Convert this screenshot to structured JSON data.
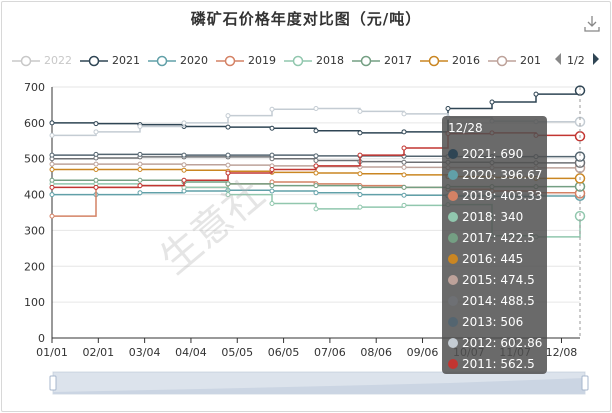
{
  "title": "磷矿石价格年度对比图（元/吨）",
  "legend": {
    "items": [
      {
        "name": "2022",
        "color": "#c8c8c8",
        "active": false
      },
      {
        "name": "2021",
        "color": "#2f4554",
        "active": true
      },
      {
        "name": "2020",
        "color": "#61a0a8",
        "active": true
      },
      {
        "name": "2019",
        "color": "#d48265",
        "active": true
      },
      {
        "name": "2018",
        "color": "#91c7ae",
        "active": true
      },
      {
        "name": "2017",
        "color": "#749f83",
        "active": true
      },
      {
        "name": "2016",
        "color": "#ca8622",
        "active": true
      },
      {
        "name": "201",
        "color": "#bda29a",
        "active": true
      }
    ],
    "page": "1/2"
  },
  "tooltip": {
    "title": "12/28",
    "rows": [
      {
        "label": "2021: 690",
        "color": "#2f4554"
      },
      {
        "label": "2020: 396.67",
        "color": "#61a0a8"
      },
      {
        "label": "2019: 403.33",
        "color": "#d48265"
      },
      {
        "label": "2018: 340",
        "color": "#91c7ae"
      },
      {
        "label": "2017: 422.5",
        "color": "#749f83"
      },
      {
        "label": "2016: 445",
        "color": "#ca8622"
      },
      {
        "label": "2015: 474.5",
        "color": "#bda29a"
      },
      {
        "label": "2014: 488.5",
        "color": "#6e7074"
      },
      {
        "label": "2013: 506",
        "color": "#546570"
      },
      {
        "label": "2012: 602.86",
        "color": "#c4ccd3"
      },
      {
        "label": "2011: 562.5",
        "color": "#c23531"
      }
    ]
  },
  "watermark": "生意社",
  "chart_data": {
    "type": "line",
    "title": "磷矿石价格年度对比图（元/吨）",
    "xlabel": "",
    "ylabel": "",
    "ylim": [
      0,
      700
    ],
    "yticks": [
      0,
      100,
      200,
      300,
      400,
      500,
      600,
      700
    ],
    "xticks": [
      "01/01",
      "02/01",
      "03/04",
      "04/04",
      "05/05",
      "06/05",
      "07/06",
      "08/06",
      "09/06",
      "10/07",
      "11/07",
      "12/08"
    ],
    "grid": "horizontal",
    "legend_position": "top",
    "x": [
      "01/01",
      "02/01",
      "03/04",
      "04/04",
      "05/05",
      "06/05",
      "07/06",
      "08/06",
      "09/06",
      "10/07",
      "11/07",
      "12/08",
      "12/28"
    ],
    "series": [
      {
        "name": "2021",
        "color": "#2f4554",
        "values": [
          600,
          598,
          595,
          590,
          588,
          585,
          578,
          572,
          575,
          640,
          658,
          680,
          690
        ]
      },
      {
        "name": "2020",
        "color": "#61a0a8",
        "values": [
          400,
          400,
          405,
          410,
          412,
          410,
          405,
          400,
          398,
          396,
          395,
          396,
          396.67
        ]
      },
      {
        "name": "2019",
        "color": "#d48265",
        "values": [
          340,
          420,
          425,
          420,
          430,
          435,
          430,
          425,
          420,
          415,
          410,
          405,
          403.33
        ]
      },
      {
        "name": "2018",
        "color": "#91c7ae",
        "values": [
          430,
          430,
          425,
          420,
          400,
          375,
          360,
          365,
          370,
          372,
          285,
          282,
          340
        ]
      },
      {
        "name": "2017",
        "color": "#749f83",
        "values": [
          440,
          440,
          440,
          435,
          430,
          425,
          425,
          420,
          420,
          422,
          422,
          422,
          422.5
        ]
      },
      {
        "name": "2016",
        "color": "#ca8622",
        "values": [
          470,
          470,
          470,
          468,
          465,
          462,
          460,
          458,
          455,
          450,
          448,
          445,
          445
        ]
      },
      {
        "name": "2015",
        "color": "#bda29a",
        "values": [
          485,
          485,
          485,
          483,
          482,
          480,
          478,
          477,
          476,
          475,
          475,
          474.5,
          474.5
        ]
      },
      {
        "name": "2014",
        "color": "#6e7074",
        "values": [
          500,
          502,
          505,
          505,
          505,
          500,
          495,
          492,
          490,
          490,
          489,
          488.5,
          488.5
        ]
      },
      {
        "name": "2013",
        "color": "#546570",
        "values": [
          510,
          512,
          512,
          510,
          510,
          510,
          508,
          508,
          507,
          506,
          506,
          506,
          506
        ]
      },
      {
        "name": "2012",
        "color": "#c4ccd3",
        "values": [
          565,
          575,
          590,
          600,
          620,
          638,
          640,
          632,
          625,
          615,
          605,
          603,
          602.86
        ]
      },
      {
        "name": "2011",
        "color": "#c23531",
        "values": [
          420,
          420,
          425,
          440,
          460,
          470,
          480,
          510,
          530,
          570,
          572,
          565,
          562.5
        ]
      }
    ]
  }
}
